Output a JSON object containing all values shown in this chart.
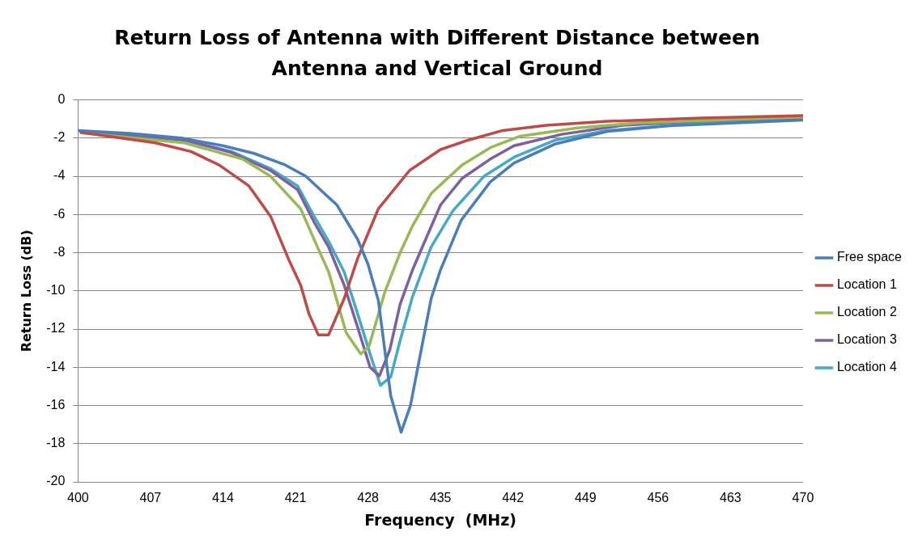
{
  "chart_data": {
    "type": "line",
    "title": "Return Loss of Antenna with Different Distance between Antenna and Vertical Ground",
    "xlabel": "Frequency  (MHz)",
    "ylabel": "Return Loss (dB)",
    "xlim": [
      400,
      470
    ],
    "xticks": [
      400,
      407,
      414,
      421,
      428,
      435,
      442,
      449,
      456,
      463,
      470
    ],
    "ylim": [
      -20,
      0
    ],
    "yticks": [
      -20,
      -18,
      -16,
      -14,
      -12,
      -10,
      -8,
      -6,
      -4,
      -2,
      0
    ],
    "grid": "y",
    "legend": "right",
    "marker": "none",
    "line_style": "solid",
    "series": [
      {
        "name": "Free space",
        "color": "#4a7ebb",
        "x": [
          400,
          405,
          410,
          414,
          417,
          420,
          422,
          424,
          425,
          426,
          427,
          428,
          429,
          430.2,
          431.2,
          432.1,
          434.1,
          435,
          437,
          439.8,
          442.1,
          446.1,
          451.1,
          457.1,
          470
        ],
        "values": [
          -1.6,
          -1.75,
          -2,
          -2.4,
          -2.8,
          -3.4,
          -4,
          -5,
          -5.5,
          -6.4,
          -7.3,
          -8.6,
          -10.5,
          -15.5,
          -17.4,
          -16,
          -10.4,
          -8.9,
          -6.3,
          -4.3,
          -3.3,
          -2.3,
          -1.65,
          -1.35,
          -1.05
        ]
      },
      {
        "name": "Location 1",
        "color": "#be4b48",
        "x": [
          400.3,
          407.5,
          410.9,
          413.6,
          416.5,
          418.6,
          420.3,
          421.5,
          422.3,
          423.2,
          424.2,
          425.7,
          427,
          429,
          432,
          435,
          437.7,
          441,
          445.2,
          451.1,
          460.1,
          470
        ],
        "values": [
          -1.7,
          -2.25,
          -2.7,
          -3.4,
          -4.5,
          -6.1,
          -8.3,
          -9.7,
          -11.2,
          -12.3,
          -12.3,
          -10.4,
          -8.3,
          -5.7,
          -3.7,
          -2.6,
          -2.1,
          -1.6,
          -1.33,
          -1.12,
          -0.95,
          -0.82
        ]
      },
      {
        "name": "Location 2",
        "color": "#98b954",
        "x": [
          400.3,
          410.3,
          415.9,
          418.6,
          421.5,
          423.2,
          424.2,
          425.9,
          427.3,
          428.1,
          429.6,
          431.1,
          432.3,
          434.1,
          437.1,
          439.8,
          442.7,
          448.2,
          454.1,
          470
        ],
        "values": [
          -1.72,
          -2.25,
          -3.1,
          -4,
          -5.7,
          -7.8,
          -9,
          -12.2,
          -13.3,
          -12.9,
          -10.1,
          -8,
          -6.6,
          -4.9,
          -3.4,
          -2.5,
          -1.9,
          -1.47,
          -1.2,
          -0.9
        ]
      },
      {
        "name": "Location 3",
        "color": "#7d60a0",
        "x": [
          400.3,
          410.3,
          414.8,
          418.6,
          421.2,
          422.8,
          424.2,
          425.7,
          427,
          428.2,
          429.1,
          430.1,
          431.1,
          432.3,
          435,
          437.1,
          439.8,
          442.1,
          446.7,
          452.6,
          460.1,
          470
        ],
        "values": [
          -1.65,
          -2.1,
          -2.75,
          -3.7,
          -4.7,
          -6.4,
          -7.7,
          -9.7,
          -11.9,
          -14,
          -14.45,
          -13.1,
          -10.7,
          -8.9,
          -5.5,
          -4.1,
          -3.1,
          -2.4,
          -1.8,
          -1.33,
          -1.1,
          -0.95
        ]
      },
      {
        "name": "Location 4",
        "color": "#46aac5",
        "x": [
          400.3,
          410.3,
          414.8,
          418.6,
          421.2,
          422.8,
          424.2,
          425.7,
          427,
          428.2,
          429.2,
          430.2,
          431.1,
          432.3,
          434.1,
          436.2,
          439.2,
          442.1,
          446.1,
          451.1,
          460.1,
          470
        ],
        "values": [
          -1.7,
          -2.1,
          -2.7,
          -3.6,
          -4.5,
          -6.1,
          -7.4,
          -9,
          -11.2,
          -13.3,
          -14.95,
          -14.5,
          -12.6,
          -10.3,
          -7.7,
          -5.8,
          -4,
          -3,
          -2.1,
          -1.6,
          -1.2,
          -1
        ]
      }
    ]
  }
}
